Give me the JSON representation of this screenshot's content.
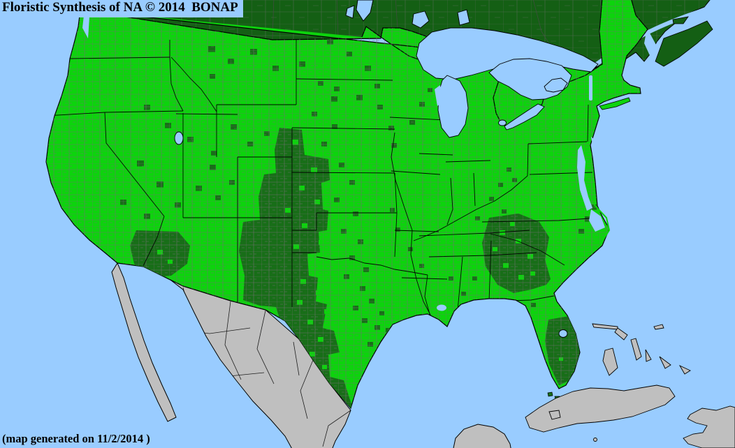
{
  "map": {
    "title": "Floristic Synthesis of NA © 2014  BONAP",
    "footer": "(map generated on 11/2/2014 )",
    "colors": {
      "ocean": "#99CCFF",
      "county_present_green": "#0DD30D",
      "county_absent_dark_green": "#186E18",
      "canada_dark_green": "#145F14",
      "mexico_gray": "#BFBFBF",
      "county_line_gray": "#707070",
      "border_black": "#000000",
      "text_black": "#000000"
    }
  }
}
